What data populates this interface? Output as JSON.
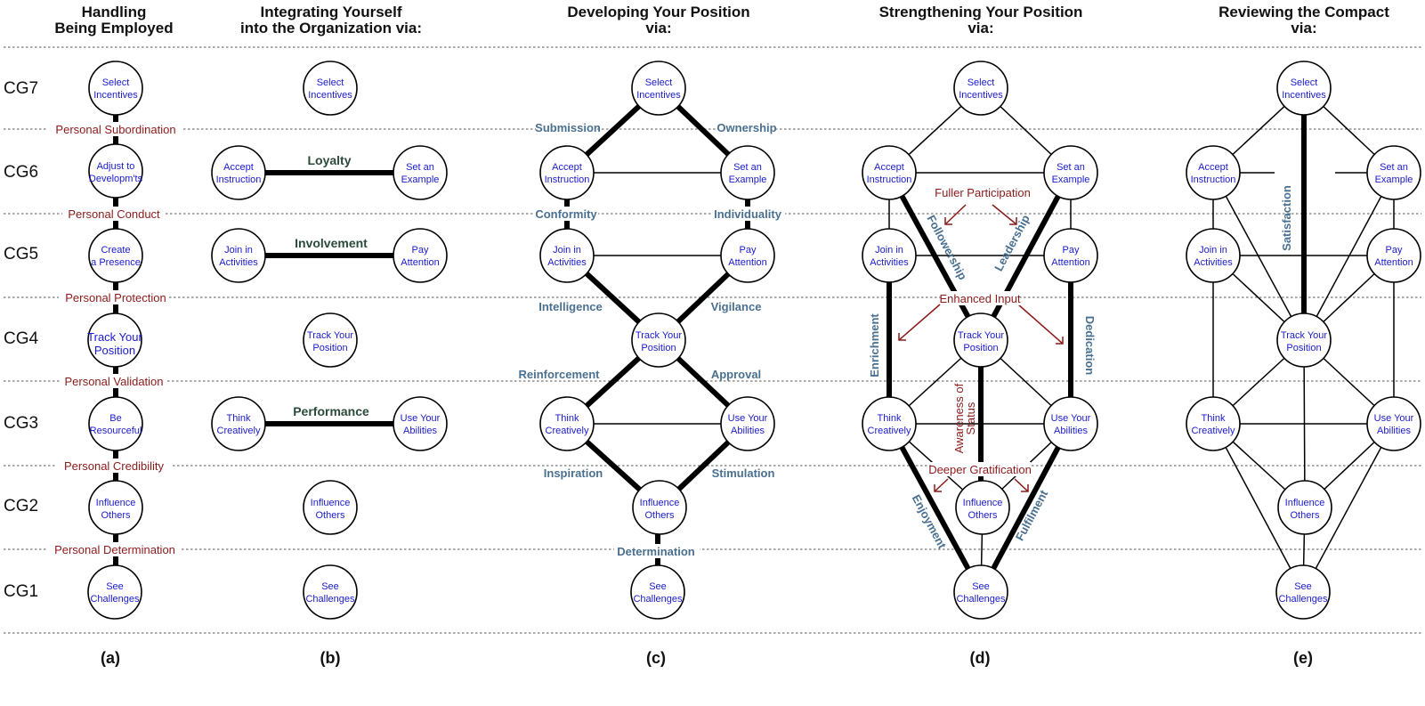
{
  "columns": [
    {
      "title1": "Handling",
      "title2": "Being Employed",
      "label": "(a)"
    },
    {
      "title1": "Integrating Yourself",
      "title2": "into the Organization via:",
      "label": "(b)"
    },
    {
      "title1": "Developing Your Position",
      "title2": "via:",
      "label": "(c)"
    },
    {
      "title1": "Strengthening Your Position",
      "title2": "via:",
      "label": "(d)"
    },
    {
      "title1": "Reviewing the Compact",
      "title2": "via:",
      "label": "(e)"
    }
  ],
  "cg_levels": [
    "CG7",
    "CG6",
    "CG5",
    "CG4",
    "CG3",
    "CG2",
    "CG1"
  ],
  "nodes": {
    "select": [
      "Select",
      "Incentives"
    ],
    "adjust": [
      "Adjust to",
      "Developm'ts"
    ],
    "create": [
      "Create",
      "a Presence"
    ],
    "track": [
      "Track Your",
      "Position"
    ],
    "resourceful": [
      "Be",
      "Resourceful"
    ],
    "influence": [
      "Influence",
      "Others"
    ],
    "see": [
      "See",
      "Challenges"
    ],
    "accept": [
      "Accept",
      "Instruction"
    ],
    "example": [
      "Set an",
      "Example"
    ],
    "join": [
      "Join in",
      "Activities"
    ],
    "pay": [
      "Pay",
      "Attention"
    ],
    "think": [
      "Think",
      "Creatively"
    ],
    "use": [
      "Use Your",
      "Abilities"
    ]
  },
  "panel_a_links": [
    "Personal Subordination",
    "Personal Conduct",
    "Personal Protection",
    "Personal Validation",
    "Personal Credibility",
    "Personal Determination"
  ],
  "panel_b_links": [
    "Loyalty",
    "Involvement",
    "Performance"
  ],
  "panel_c_links": {
    "submission": "Submission",
    "ownership": "Ownership",
    "conformity": "Conformity",
    "individuality": "Individuality",
    "intelligence": "Intelligence",
    "vigilance": "Vigilance",
    "reinforcement": "Reinforcement",
    "approval": "Approval",
    "inspiration": "Inspiration",
    "stimulation": "Stimulation",
    "determination": "Determination"
  },
  "panel_d_links": {
    "fuller": "Fuller Participation",
    "followership": "Followership",
    "leadership": "Leadership",
    "enhanced": "Enhanced Input",
    "enrichment": "Enrichment",
    "dedication": "Dedication",
    "awareness1": "Awareness of",
    "awareness2": "Status",
    "deeper": "Deeper Gratification",
    "enjoyment": "Enjoyment",
    "fulfilment": "Fulfilment"
  },
  "panel_e_links": {
    "satisfaction": "Satisfaction"
  },
  "colors": {
    "node_text": "#1a1acc",
    "personal_label": "#8b1a1a",
    "link_label": "#4a7090"
  }
}
